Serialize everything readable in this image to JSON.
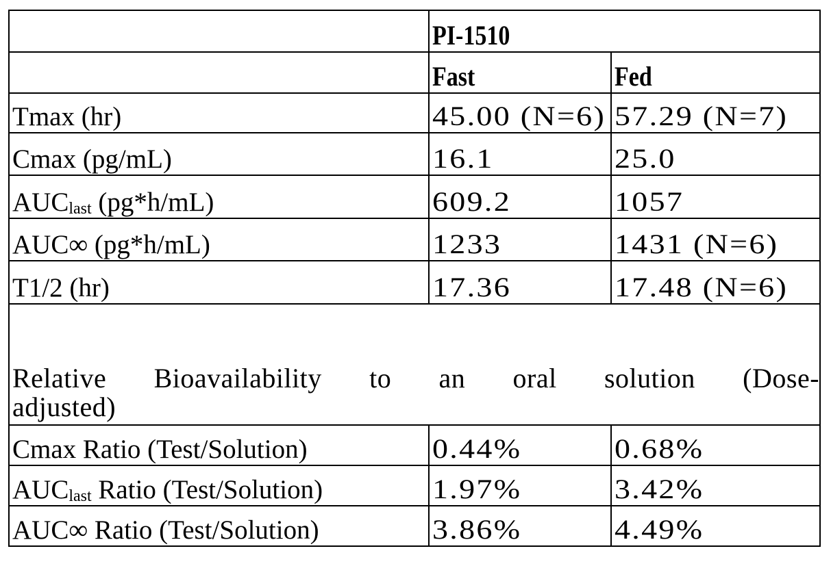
{
  "table": {
    "group_header": "PI-1510",
    "columns": [
      "Fast",
      "Fed"
    ],
    "rows": [
      {
        "label": "Tmax (hr)",
        "fast": "45.00 (N=6)",
        "fed": "57.29 (N=7)"
      },
      {
        "label": "Cmax (pg/mL)",
        "fast": "16.1",
        "fed": "25.0"
      },
      {
        "label_main": "AUC",
        "label_sub": "last",
        "label_rest": " (pg*h/mL)",
        "fast": "609.2",
        "fed": "1057"
      },
      {
        "label": "AUC∞ (pg*h/mL)",
        "fast": "1233",
        "fed": "1431 (N=6)"
      },
      {
        "label": "T1/2 (hr)",
        "fast": "17.36",
        "fed": "17.48 (N=6)"
      }
    ],
    "section_line1": "Relative Bioavailability to an oral solution (Dose-",
    "section_line2": "adjusted)",
    "ratio_rows": [
      {
        "label": "Cmax Ratio (Test/Solution)",
        "fast": "0.44%",
        "fed": "0.68%"
      },
      {
        "label_main": "AUC",
        "label_sub": "last",
        "label_rest": " Ratio (Test/Solution)",
        "fast": "1.97%",
        "fed": "3.42%"
      },
      {
        "label": "AUC∞ Ratio (Test/Solution)",
        "fast": "3.86%",
        "fed": "4.49%"
      }
    ]
  }
}
